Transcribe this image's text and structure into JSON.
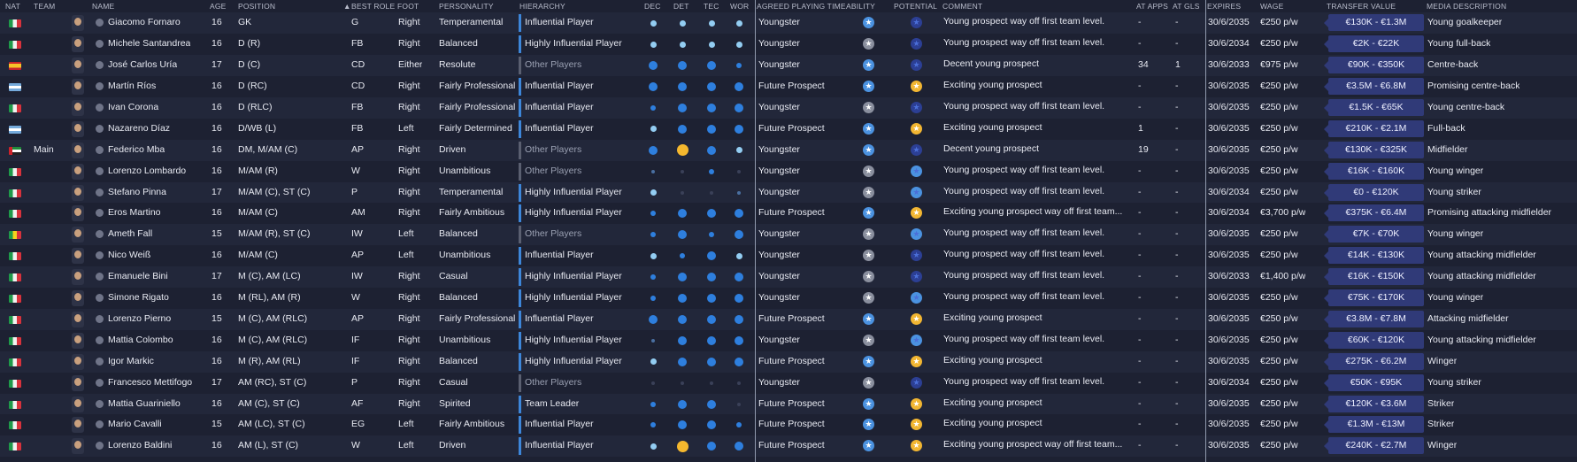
{
  "headers": {
    "nat": "NAT",
    "team": "TEAM",
    "name": "NAME",
    "age": "AGE",
    "position": "POSITION",
    "best_role": "BEST ROLE",
    "foot": "FOOT",
    "personality": "PERSONALITY",
    "hierarchy": "HIERARCHY",
    "dec": "DEC",
    "det": "DET",
    "tec": "TEC",
    "wor": "WOR",
    "agreed": "AGREED PLAYING TIME",
    "ability": "ABILITY",
    "potential": "POTENTIAL",
    "comment": "COMMENT",
    "at_apps": "AT APPS",
    "at_gls": "AT GLS",
    "expires": "EXPIRES",
    "wage": "WAGE",
    "transfer_value": "TRANSFER VALUE",
    "media": "MEDIA DESCRIPTION"
  },
  "colors": {
    "bg": "#1d2132",
    "row_alt": "#22273a",
    "accent_blue": "#3d86d9",
    "dot_light": "#93cdf2",
    "dot_blue": "#2e7fde",
    "dot_dim": "#3a4058",
    "dot_gold": "#f5b82e",
    "pot_gold": "#f2b632",
    "pot_navy": "#2c3f94",
    "tv_bg": "#303a78"
  },
  "players": [
    {
      "flag": "italy",
      "team": "",
      "name": "Giacomo Fornaro",
      "age": "16",
      "position": "GK",
      "role": "G",
      "foot": "Right",
      "personality": "Temperamental",
      "hierarchy": "Influential Player",
      "dots": [
        "L",
        "L",
        "L",
        "L"
      ],
      "agreed": "Youngster",
      "ability": "blue",
      "potential": "navy",
      "comment": "Young prospect way off first team level.",
      "apps": "-",
      "gls": "-",
      "expires": "30/6/2035",
      "wage": "€250 p/w",
      "tv": "€130K - €1.3M",
      "media": "Young goalkeeper"
    },
    {
      "flag": "italy",
      "team": "",
      "name": "Michele Santandrea",
      "age": "16",
      "position": "D (R)",
      "role": "FB",
      "foot": "Right",
      "personality": "Balanced",
      "hierarchy": "Highly Influential Player",
      "dots": [
        "L",
        "L",
        "L",
        "L"
      ],
      "agreed": "Youngster",
      "ability": "grey",
      "potential": "navy",
      "comment": "Young prospect way off first team level.",
      "apps": "-",
      "gls": "-",
      "expires": "30/6/2034",
      "wage": "€250 p/w",
      "tv": "€2K - €22K",
      "media": "Young full-back"
    },
    {
      "flag": "spain",
      "team": "",
      "name": "José Carlos Uría",
      "age": "17",
      "position": "D (C)",
      "role": "CD",
      "foot": "Either",
      "personality": "Resolute",
      "hierarchy": "Other Players",
      "dots": [
        "B",
        "B",
        "B",
        "s"
      ],
      "agreed": "Youngster",
      "ability": "blue",
      "potential": "navy",
      "comment": "Decent young prospect",
      "apps": "34",
      "gls": "1",
      "expires": "30/6/2033",
      "wage": "€975 p/w",
      "tv": "€90K - €350K",
      "media": "Centre-back"
    },
    {
      "flag": "argentina",
      "team": "",
      "name": "Martín Ríos",
      "age": "16",
      "position": "D (RC)",
      "role": "CD",
      "foot": "Right",
      "personality": "Fairly Professional",
      "hierarchy": "Influential Player",
      "dots": [
        "B",
        "B",
        "B",
        "B"
      ],
      "agreed": "Future Prospect",
      "ability": "blue",
      "potential": "gold",
      "comment": "Exciting young prospect",
      "apps": "-",
      "gls": "-",
      "expires": "30/6/2035",
      "wage": "€250 p/w",
      "tv": "€3.5M - €6.8M",
      "media": "Promising centre-back"
    },
    {
      "flag": "italy",
      "team": "",
      "name": "Ivan Corona",
      "age": "16",
      "position": "D (RLC)",
      "role": "FB",
      "foot": "Right",
      "personality": "Fairly Professional",
      "hierarchy": "Influential Player",
      "dots": [
        "s",
        "B",
        "B",
        "B"
      ],
      "agreed": "Youngster",
      "ability": "grey",
      "potential": "navy",
      "comment": "Young prospect way off first team level.",
      "apps": "-",
      "gls": "-",
      "expires": "30/6/2035",
      "wage": "€250 p/w",
      "tv": "€1.5K - €65K",
      "media": "Young centre-back"
    },
    {
      "flag": "argentina",
      "team": "",
      "name": "Nazareno Díaz",
      "age": "16",
      "position": "D/WB (L)",
      "role": "FB",
      "foot": "Left",
      "personality": "Fairly Determined",
      "hierarchy": "Influential Player",
      "dots": [
        "L",
        "B",
        "B",
        "B"
      ],
      "agreed": "Future Prospect",
      "ability": "blue",
      "potential": "gold",
      "comment": "Exciting young prospect",
      "apps": "1",
      "gls": "-",
      "expires": "30/6/2035",
      "wage": "€250 p/w",
      "tv": "€210K - €2.1M",
      "media": "Full-back"
    },
    {
      "flag": "uae",
      "team": "Main",
      "name": "Federico Mba",
      "age": "16",
      "position": "DM, M/AM (C)",
      "role": "AP",
      "foot": "Right",
      "personality": "Driven",
      "hierarchy": "Other Players",
      "dots": [
        "B",
        "G",
        "B",
        "L"
      ],
      "agreed": "Youngster",
      "ability": "blue",
      "potential": "navy",
      "comment": "Decent young prospect",
      "apps": "19",
      "gls": "-",
      "expires": "30/6/2035",
      "wage": "€250 p/w",
      "tv": "€130K - €325K",
      "media": "Midfielder"
    },
    {
      "flag": "italy",
      "team": "",
      "name": "Lorenzo Lombardo",
      "age": "16",
      "position": "M/AM (R)",
      "role": "W",
      "foot": "Right",
      "personality": "Unambitious",
      "hierarchy": "Other Players",
      "dots": [
        "t",
        "n",
        "s",
        "n"
      ],
      "agreed": "Youngster",
      "ability": "grey",
      "potential": "blue",
      "comment": "Young prospect way off first team level.",
      "apps": "-",
      "gls": "-",
      "expires": "30/6/2035",
      "wage": "€250 p/w",
      "tv": "€16K - €160K",
      "media": "Young winger"
    },
    {
      "flag": "italy",
      "team": "",
      "name": "Stefano Pinna",
      "age": "17",
      "position": "M/AM (C), ST (C)",
      "role": "P",
      "foot": "Right",
      "personality": "Temperamental",
      "hierarchy": "Highly Influential Player",
      "dots": [
        "L",
        "n",
        "n",
        "t"
      ],
      "agreed": "Youngster",
      "ability": "grey",
      "potential": "blue",
      "comment": "Young prospect way off first team level.",
      "apps": "-",
      "gls": "-",
      "expires": "30/6/2034",
      "wage": "€250 p/w",
      "tv": "€0 - €120K",
      "media": "Young striker"
    },
    {
      "flag": "italy",
      "team": "",
      "name": "Eros Martino",
      "age": "16",
      "position": "M/AM (C)",
      "role": "AM",
      "foot": "Right",
      "personality": "Fairly Ambitious",
      "hierarchy": "Highly Influential Player",
      "dots": [
        "s",
        "B",
        "B",
        "B"
      ],
      "agreed": "Future Prospect",
      "ability": "blue",
      "potential": "gold",
      "comment": "Exciting young prospect way off first team...",
      "apps": "-",
      "gls": "-",
      "expires": "30/6/2034",
      "wage": "€3,700 p/w",
      "tv": "€375K - €6.4M",
      "media": "Promising attacking midfielder"
    },
    {
      "flag": "senegal",
      "team": "",
      "name": "Ameth Fall",
      "age": "15",
      "position": "M/AM (R), ST (C)",
      "role": "IW",
      "foot": "Left",
      "personality": "Balanced",
      "hierarchy": "Other Players",
      "dots": [
        "s",
        "B",
        "s",
        "B"
      ],
      "agreed": "Youngster",
      "ability": "grey",
      "potential": "blue",
      "comment": "Young prospect way off first team level.",
      "apps": "-",
      "gls": "-",
      "expires": "30/6/2035",
      "wage": "€250 p/w",
      "tv": "€7K - €70K",
      "media": "Young winger"
    },
    {
      "flag": "italy",
      "team": "",
      "name": "Nico Weiß",
      "age": "16",
      "position": "M/AM (C)",
      "role": "AP",
      "foot": "Left",
      "personality": "Unambitious",
      "hierarchy": "Influential Player",
      "dots": [
        "L",
        "s",
        "B",
        "L"
      ],
      "agreed": "Youngster",
      "ability": "grey",
      "potential": "navy",
      "comment": "Young prospect way off first team level.",
      "apps": "-",
      "gls": "-",
      "expires": "30/6/2035",
      "wage": "€250 p/w",
      "tv": "€14K - €130K",
      "media": "Young attacking midfielder"
    },
    {
      "flag": "italy",
      "team": "",
      "name": "Emanuele Bini",
      "age": "17",
      "position": "M (C), AM (LC)",
      "role": "IW",
      "foot": "Right",
      "personality": "Casual",
      "hierarchy": "Highly Influential Player",
      "dots": [
        "s",
        "B",
        "B",
        "B"
      ],
      "agreed": "Youngster",
      "ability": "grey",
      "potential": "navy",
      "comment": "Young prospect way off first team level.",
      "apps": "-",
      "gls": "-",
      "expires": "30/6/2033",
      "wage": "€1,400 p/w",
      "tv": "€16K - €150K",
      "media": "Young attacking midfielder"
    },
    {
      "flag": "italy",
      "team": "",
      "name": "Simone Rigato",
      "age": "16",
      "position": "M (RL), AM (R)",
      "role": "W",
      "foot": "Right",
      "personality": "Balanced",
      "hierarchy": "Highly Influential Player",
      "dots": [
        "s",
        "B",
        "B",
        "B"
      ],
      "agreed": "Youngster",
      "ability": "grey",
      "potential": "blue",
      "comment": "Young prospect way off first team level.",
      "apps": "-",
      "gls": "-",
      "expires": "30/6/2035",
      "wage": "€250 p/w",
      "tv": "€75K - €170K",
      "media": "Young winger"
    },
    {
      "flag": "italy",
      "team": "",
      "name": "Lorenzo Pierno",
      "age": "15",
      "position": "M (C), AM (RLC)",
      "role": "AP",
      "foot": "Right",
      "personality": "Fairly Professional",
      "hierarchy": "Influential Player",
      "dots": [
        "B",
        "B",
        "B",
        "B"
      ],
      "agreed": "Future Prospect",
      "ability": "blue",
      "potential": "gold",
      "comment": "Exciting young prospect",
      "apps": "-",
      "gls": "-",
      "expires": "30/6/2035",
      "wage": "€250 p/w",
      "tv": "€3.8M - €7.8M",
      "media": "Attacking midfielder"
    },
    {
      "flag": "italy",
      "team": "",
      "name": "Mattia Colombo",
      "age": "16",
      "position": "M (C), AM (RLC)",
      "role": "IF",
      "foot": "Right",
      "personality": "Unambitious",
      "hierarchy": "Highly Influential Player",
      "dots": [
        "t",
        "B",
        "B",
        "B"
      ],
      "agreed": "Youngster",
      "ability": "grey",
      "potential": "blue",
      "comment": "Young prospect way off first team level.",
      "apps": "-",
      "gls": "-",
      "expires": "30/6/2035",
      "wage": "€250 p/w",
      "tv": "€60K - €120K",
      "media": "Young attacking midfielder"
    },
    {
      "flag": "italy",
      "team": "",
      "name": "Igor Markic",
      "age": "16",
      "position": "M (R), AM (RL)",
      "role": "IF",
      "foot": "Right",
      "personality": "Balanced",
      "hierarchy": "Highly Influential Player",
      "dots": [
        "L",
        "B",
        "B",
        "B"
      ],
      "agreed": "Future Prospect",
      "ability": "blue",
      "potential": "gold",
      "comment": "Exciting young prospect",
      "apps": "-",
      "gls": "-",
      "expires": "30/6/2035",
      "wage": "€250 p/w",
      "tv": "€275K - €6.2M",
      "media": "Winger"
    },
    {
      "flag": "italy",
      "team": "",
      "name": "Francesco Mettifogo",
      "age": "17",
      "position": "AM (RC), ST (C)",
      "role": "P",
      "foot": "Right",
      "personality": "Casual",
      "hierarchy": "Other Players",
      "dots": [
        "n",
        "n",
        "n",
        "n"
      ],
      "agreed": "Youngster",
      "ability": "grey",
      "potential": "navy",
      "comment": "Young prospect way off first team level.",
      "apps": "-",
      "gls": "-",
      "expires": "30/6/2034",
      "wage": "€250 p/w",
      "tv": "€50K - €95K",
      "media": "Young striker"
    },
    {
      "flag": "italy",
      "team": "",
      "name": "Mattia Guariniello",
      "age": "16",
      "position": "AM (C), ST (C)",
      "role": "AF",
      "foot": "Right",
      "personality": "Spirited",
      "hierarchy": "Team Leader",
      "dots": [
        "s",
        "B",
        "B",
        "n"
      ],
      "agreed": "Future Prospect",
      "ability": "blue",
      "potential": "gold",
      "comment": "Exciting young prospect",
      "apps": "-",
      "gls": "-",
      "expires": "30/6/2035",
      "wage": "€250 p/w",
      "tv": "€120K - €3.6M",
      "media": "Striker"
    },
    {
      "flag": "italy",
      "team": "",
      "name": "Mario Cavalli",
      "age": "15",
      "position": "AM (LC), ST (C)",
      "role": "EG",
      "foot": "Left",
      "personality": "Fairly Ambitious",
      "hierarchy": "Influential Player",
      "dots": [
        "s",
        "B",
        "B",
        "s"
      ],
      "agreed": "Future Prospect",
      "ability": "blue",
      "potential": "gold",
      "comment": "Exciting young prospect",
      "apps": "-",
      "gls": "-",
      "expires": "30/6/2035",
      "wage": "€250 p/w",
      "tv": "€1.3M - €13M",
      "media": "Striker"
    },
    {
      "flag": "italy",
      "team": "",
      "name": "Lorenzo Baldini",
      "age": "16",
      "position": "AM (L), ST (C)",
      "role": "W",
      "foot": "Left",
      "personality": "Driven",
      "hierarchy": "Influential Player",
      "dots": [
        "L",
        "G",
        "B",
        "B"
      ],
      "agreed": "Future Prospect",
      "ability": "blue",
      "potential": "gold",
      "comment": "Exciting young prospect way off first team...",
      "apps": "-",
      "gls": "-",
      "expires": "30/6/2035",
      "wage": "€250 p/w",
      "tv": "€240K - €2.7M",
      "media": "Winger"
    }
  ]
}
